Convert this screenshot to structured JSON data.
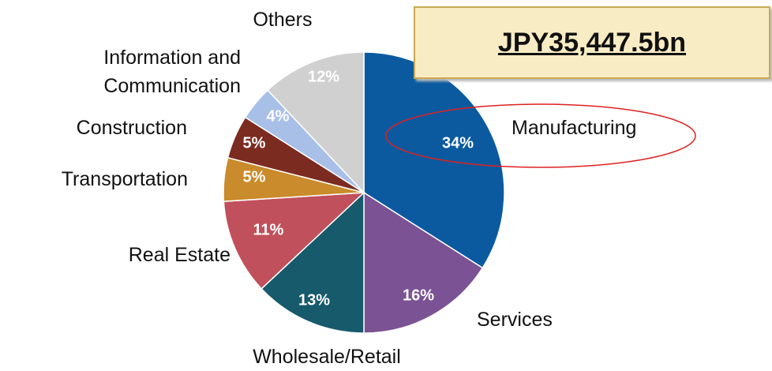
{
  "chart_data": {
    "type": "pie",
    "annotation": "JPY35,447.5bn",
    "categories": [
      "Manufacturing",
      "Services",
      "Wholesale/Retail",
      "Real Estate",
      "Transportation",
      "Construction",
      "Information and Communication",
      "Others"
    ],
    "values": [
      34,
      16,
      13,
      11,
      5,
      5,
      4,
      12
    ],
    "value_labels": [
      "34%",
      "16%",
      "13%",
      "11%",
      "5%",
      "5%",
      "4%",
      "12%"
    ],
    "colors": [
      "#0b5aa0",
      "#7b5294",
      "#165a6b",
      "#c0505b",
      "#c98b2b",
      "#7c2b20",
      "#a8c0e8",
      "#d0d0d0"
    ]
  }
}
